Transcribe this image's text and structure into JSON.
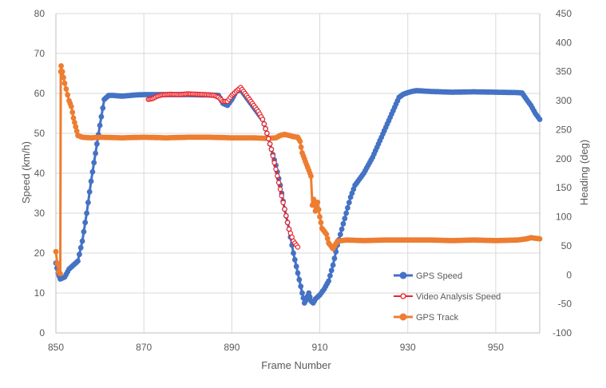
{
  "chart_data": {
    "type": "line",
    "xlabel": "Frame Number",
    "ylabel": "Speed (km/h)",
    "y2label": "Heading (deg)",
    "xlim": [
      850,
      960
    ],
    "ylim": [
      0,
      80
    ],
    "y2lim": [
      -100,
      450
    ],
    "x_ticks": [
      850,
      870,
      890,
      910,
      930,
      950
    ],
    "y_ticks": [
      0,
      10,
      20,
      30,
      40,
      50,
      60,
      70,
      80
    ],
    "y2_ticks": [
      -100,
      -50,
      0,
      50,
      100,
      150,
      200,
      250,
      300,
      350,
      400,
      450
    ],
    "grid": true,
    "legend_position": "lower-right",
    "series": [
      {
        "name": "GPS Speed",
        "color": "#4472C4",
        "axis": "left",
        "marker": "filled-circle",
        "x": [
          850,
          850.5,
          851,
          852,
          853,
          854,
          855,
          856,
          857,
          858,
          859,
          860,
          861,
          862,
          863,
          865,
          868,
          870,
          875,
          880,
          885,
          887,
          888,
          889,
          890,
          891,
          892,
          893,
          894,
          895,
          896,
          897,
          898,
          899,
          900,
          901,
          902,
          903,
          904,
          905,
          906,
          906.5,
          907,
          907.5,
          908,
          908.5,
          909,
          910,
          911,
          912,
          913,
          914,
          915,
          916,
          917,
          918,
          919,
          920,
          921,
          922,
          923,
          924,
          925,
          926,
          927,
          928,
          929,
          930,
          931,
          932,
          935,
          940,
          945,
          950,
          955,
          956,
          957,
          958,
          959,
          960
        ],
        "y": [
          17.5,
          15,
          13.5,
          14,
          16,
          17,
          18,
          23,
          30,
          38,
          45,
          52,
          58.5,
          59.5,
          59.5,
          59.3,
          59.6,
          59.7,
          59.7,
          59.7,
          59.6,
          59.5,
          57.5,
          57,
          58.5,
          60.5,
          61,
          59.5,
          58,
          56.5,
          55,
          53.5,
          50,
          46,
          42,
          37,
          31,
          26,
          20,
          15,
          10,
          7.5,
          8.5,
          10,
          8,
          7.5,
          8.5,
          9.5,
          11,
          13,
          17,
          22,
          26,
          30,
          34,
          37,
          38.5,
          40,
          42,
          44,
          46.5,
          49,
          51.5,
          54,
          56.5,
          59,
          59.8,
          60.2,
          60.5,
          60.7,
          60.5,
          60.3,
          60.4,
          60.3,
          60.2,
          60.1,
          58.5,
          57,
          55,
          53.5
        ]
      },
      {
        "name": "Video Analysis Speed",
        "color": "#E8252B",
        "axis": "left",
        "marker": "open-circle",
        "x": [
          871,
          872,
          873,
          874,
          876,
          878,
          880,
          882,
          884,
          886,
          887,
          888,
          889,
          890,
          891,
          892,
          893,
          894,
          895,
          896,
          897,
          898,
          899,
          900,
          901,
          902,
          903,
          904,
          905
        ],
        "y": [
          58.5,
          58.7,
          59.3,
          59.6,
          59.8,
          59.7,
          59.9,
          59.8,
          59.7,
          59.5,
          59,
          58,
          58,
          59.5,
          60.5,
          61.5,
          60,
          58.5,
          57,
          55.5,
          53.5,
          50,
          46,
          41,
          36,
          31,
          26,
          23,
          21.5
        ]
      },
      {
        "name": "GPS Track",
        "color": "#ED7D31",
        "axis": "right",
        "marker": "filled-circle",
        "x": [
          850,
          850.3,
          850.6,
          851,
          851.1,
          851.2,
          852,
          853,
          853.5,
          854,
          854.5,
          855,
          856,
          858,
          860,
          865,
          870,
          875,
          880,
          885,
          890,
          895,
          898,
          900,
          901,
          902,
          903,
          904,
          905,
          905.5,
          906,
          906.5,
          907,
          907.5,
          908,
          908.3,
          908.6,
          909,
          909.5,
          910,
          910.5,
          911,
          911.5,
          912,
          912.5,
          913,
          914,
          916,
          920,
          925,
          930,
          935,
          940,
          945,
          950,
          955,
          957,
          958,
          960
        ],
        "y": [
          40,
          20,
          5,
          2,
          350,
          360,
          330,
          300,
          290,
          270,
          255,
          240,
          237,
          236,
          237,
          236,
          237,
          236,
          237,
          237,
          236,
          236,
          235,
          236,
          240,
          242,
          240,
          238,
          237,
          230,
          210,
          200,
          190,
          180,
          170,
          120,
          130,
          110,
          125,
          100,
          80,
          75,
          70,
          55,
          50,
          45,
          58,
          60,
          59,
          60,
          60,
          60,
          59,
          60,
          59,
          60,
          62,
          64,
          62
        ]
      }
    ]
  }
}
